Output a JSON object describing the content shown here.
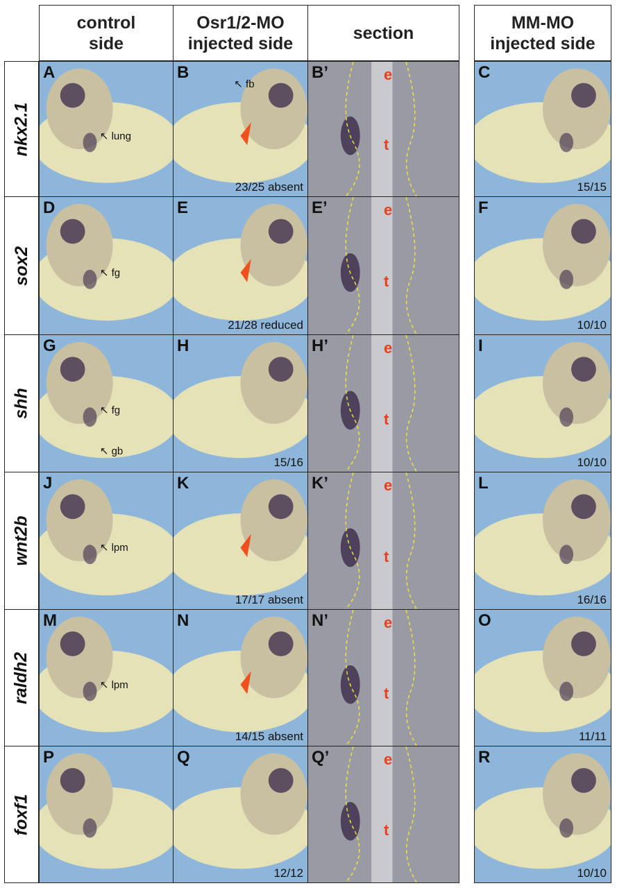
{
  "headers": [
    {
      "label_1": "control",
      "label_2": "side"
    },
    {
      "label_1": "Osr1/2-MO",
      "label_2": "injected side"
    },
    {
      "label_1": "section",
      "label_2": ""
    },
    {
      "label_1": "MM-MO",
      "label_2": "injected side"
    }
  ],
  "colors": {
    "background": "#8db6da",
    "embryo": "#e6e2b8",
    "stain": "#3a2a4a",
    "arrowhead": "#f0501e",
    "section_marker": "#e8401c",
    "boundary": "#f2e23a"
  },
  "rows": [
    {
      "gene": "nkx2.1",
      "panels": [
        {
          "letter": "A",
          "labels": [
            "lung"
          ],
          "count": ""
        },
        {
          "letter": "B",
          "labels": [
            "fb"
          ],
          "count": "23/25 absent",
          "arrowhead": true
        },
        {
          "letter": "B’",
          "e": "e",
          "t": "t"
        },
        {
          "letter": "C",
          "count": "15/15"
        }
      ]
    },
    {
      "gene": "sox2",
      "panels": [
        {
          "letter": "D",
          "labels": [
            "fg"
          ],
          "count": ""
        },
        {
          "letter": "E",
          "labels": [],
          "count": "21/28  reduced",
          "arrowhead": true
        },
        {
          "letter": "E’",
          "e": "e",
          "t": "t"
        },
        {
          "letter": "F",
          "count": "10/10"
        }
      ]
    },
    {
      "gene": "shh",
      "panels": [
        {
          "letter": "G",
          "labels": [
            "fg",
            "gb"
          ],
          "count": ""
        },
        {
          "letter": "H",
          "labels": [],
          "count": "15/16"
        },
        {
          "letter": "H’",
          "e": "e",
          "t": "t"
        },
        {
          "letter": "I",
          "count": "10/10"
        }
      ]
    },
    {
      "gene": "wnt2b",
      "panels": [
        {
          "letter": "J",
          "labels": [
            "lpm"
          ],
          "count": ""
        },
        {
          "letter": "K",
          "labels": [],
          "count": "17/17 absent",
          "arrowhead": true
        },
        {
          "letter": "K’",
          "e": "e",
          "t": "t"
        },
        {
          "letter": "L",
          "count": "16/16"
        }
      ]
    },
    {
      "gene": "raldh2",
      "panels": [
        {
          "letter": "M",
          "labels": [
            "lpm"
          ],
          "count": ""
        },
        {
          "letter": "N",
          "labels": [],
          "count": "14/15 absent",
          "arrowhead": true
        },
        {
          "letter": "N’",
          "e": "e",
          "t": "t"
        },
        {
          "letter": "O",
          "count": "11/11"
        }
      ]
    },
    {
      "gene": "foxf1",
      "panels": [
        {
          "letter": "P",
          "labels": [],
          "count": ""
        },
        {
          "letter": "Q",
          "labels": [],
          "count": "12/12"
        },
        {
          "letter": "Q’",
          "e": "e",
          "t": "t"
        },
        {
          "letter": "R",
          "count": "10/10"
        }
      ]
    }
  ]
}
